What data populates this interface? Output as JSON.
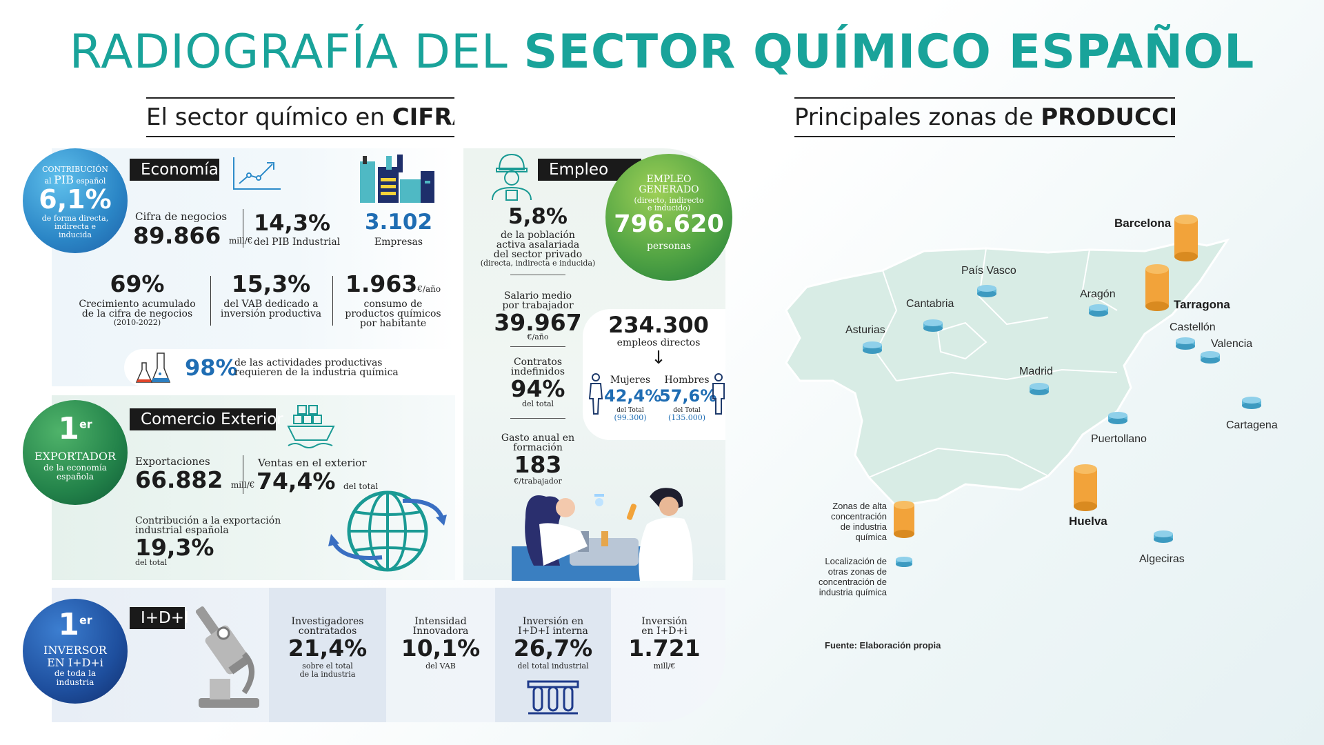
{
  "title": {
    "part1": "RADIOGRAFÍA DEL ",
    "part2": "SECTOR QUÍMICO ESPAÑOL"
  },
  "left_heading": {
    "normal": "El sector químico en ",
    "bold": "CIFRAS"
  },
  "right_heading": {
    "normal": "Principales zonas de ",
    "bold": "PRODUCCIÓN"
  },
  "economia": {
    "label": "Economía",
    "pib_circle": {
      "line1": "CONTRIBUCIÓN",
      "line2a": "al ",
      "line2b": "PIB",
      "line2c": " español",
      "value": "6,1%",
      "line3": "de forma directa,",
      "line4": "indirecta e",
      "line5": "inducida"
    },
    "cifra_label": "Cifra de negocios",
    "cifra_value": "89.866",
    "cifra_unit": "mill/€",
    "pib_ind_value": "14,3%",
    "pib_ind_label": "del PIB Industrial",
    "empresas_value": "3.102",
    "empresas_label": "Empresas",
    "crec_value": "69%",
    "crec_l1": "Crecimiento acumulado",
    "crec_l2": "de la cifra de negocios",
    "crec_l3": "(2010-2022)",
    "vab_value": "15,3%",
    "vab_l1": "del VAB dedicado a",
    "vab_l2": "inversión productiva",
    "cons_value": "1.963",
    "cons_unit": "€/año",
    "cons_l1": "consumo de",
    "cons_l2": "productos químicos",
    "cons_l3": "por habitante",
    "act_value": "98%",
    "act_l1": "de las actividades productivas",
    "act_l2": "requieren de la industria química"
  },
  "comercio": {
    "label": "Comercio Exterior",
    "circle": {
      "rank": "1",
      "sup": "er",
      "l1": "EXPORTADOR",
      "l2": "de la economía",
      "l3": "española"
    },
    "exp_label": "Exportaciones",
    "exp_value": "66.882",
    "exp_unit": "mill/€",
    "ventas_label": "Ventas en el exterior",
    "ventas_value": "74,4%",
    "ventas_unit": "del total",
    "contrib_l1": "Contribución a la exportación",
    "contrib_l2": "industrial española",
    "contrib_value": "19,3%",
    "contrib_unit": "del total"
  },
  "empleo": {
    "label": "Empleo",
    "circle": {
      "l1": "EMPLEO",
      "l2": "GENERADO",
      "l3": "(directo, indirecto",
      "l4": "e inducido)",
      "value": "796.620",
      "unit": "personas"
    },
    "pob_value": "5,8%",
    "pob_l1": "de la población",
    "pob_l2": "activa asalariada",
    "pob_l3": "del sector privado",
    "pob_l4": "(directa, indirecta e inducida)",
    "sal_l1": "Salario medio",
    "sal_l2": "por trabajador",
    "sal_value": "39.967",
    "sal_unit": "€/año",
    "contr_l1": "Contratos",
    "contr_l2": "indefinidos",
    "contr_value": "94%",
    "contr_unit": "del total",
    "gasto_l1": "Gasto anual en",
    "gasto_l2": "formación",
    "gasto_value": "183",
    "gasto_unit": "€/trabajador",
    "directos_value": "234.300",
    "directos_label": "empleos directos",
    "arrow": "↓",
    "mujeres_label": "Mujeres",
    "mujeres_value": "42,4%",
    "mujeres_sub1": "del Total",
    "mujeres_sub2": "(99.300)",
    "hombres_label": "Hombres",
    "hombres_value": "57,6%",
    "hombres_sub1": "del Total",
    "hombres_sub2": "(135.000)"
  },
  "idi": {
    "label": "I+D+I",
    "circle": {
      "rank": "1",
      "sup": "er",
      "l1": "INVERSOR",
      "l2": "EN I+D+i",
      "l3": "de toda la",
      "l4": "industria"
    },
    "investig_l1": "Investigadores",
    "investig_l2": "contratados",
    "investig_value": "21,4%",
    "investig_u1": "sobre el total",
    "investig_u2": "de la industria",
    "intens_l1": "Intensidad",
    "intens_l2": "Innovadora",
    "intens_value": "10,1%",
    "intens_unit": "del VAB",
    "invint_l1": "Inversión en",
    "invint_l2": "I+D+I interna",
    "invint_value": "26,7%",
    "invint_unit": "del total industrial",
    "inv_l1": "Inversión",
    "inv_l2": "en I+D+i",
    "inv_value": "1.721",
    "inv_unit": "mill/€"
  },
  "map": {
    "regions": {
      "barcelona": "Barcelona",
      "pais_vasco": "País Vasco",
      "cantabria": "Cantabria",
      "aragon": "Aragón",
      "tarragona": "Tarragona",
      "asturias": "Asturias",
      "castellon": "Castellón",
      "valencia": "Valencia",
      "madrid": "Madrid",
      "cartagena": "Cartagena",
      "puertollano": "Puertollano",
      "huelva": "Huelva",
      "algeciras": "Algeciras"
    },
    "legend_high_l1": "Zonas de alta",
    "legend_high_l2": "concentración",
    "legend_high_l3": "de industria",
    "legend_high_l4": "química",
    "legend_other_l1": "Localización de",
    "legend_other_l2": "otras zonas de",
    "legend_other_l3": "concentración de",
    "legend_other_l4": "industria química",
    "source": "Fuente: Elaboración propia",
    "colors": {
      "high": "#f2a33a",
      "other": "#5fb8d9",
      "land": "#d8ece5"
    }
  },
  "colors": {
    "teal": "#19a39a",
    "blue": "#1f6db3",
    "green": "#3a9a4e",
    "dark": "#1a1a1a"
  }
}
